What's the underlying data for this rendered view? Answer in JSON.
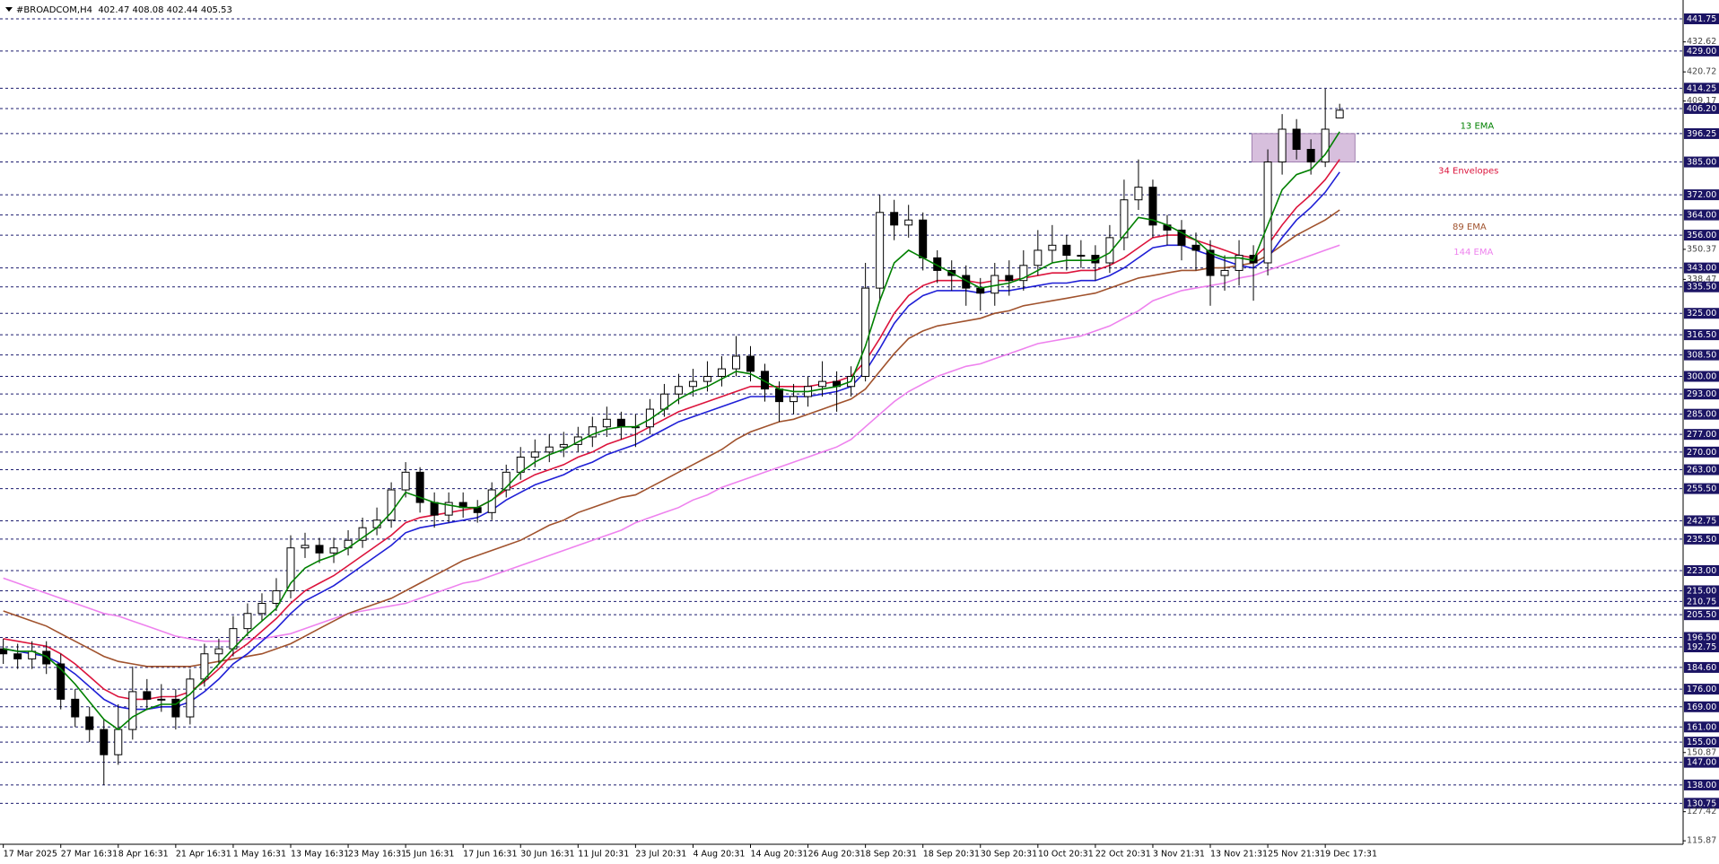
{
  "chart_data": {
    "type": "candlestick",
    "title": "#BROADCOM,H4  402.47 408.08 402.44 405.53",
    "categories": [
      "17 Mar 2025",
      null,
      null,
      null,
      "27 Mar 16:31",
      null,
      null,
      null,
      "8 Apr 16:31",
      null,
      null,
      null,
      "21 Apr 16:31",
      null,
      null,
      null,
      "1 May 16:31",
      null,
      null,
      null,
      "13 May 16:31",
      null,
      null,
      null,
      "23 May 16:31",
      null,
      null,
      null,
      "5 Jun 16:31",
      null,
      null,
      null,
      "17 Jun 16:31",
      null,
      null,
      null,
      "30 Jun 16:31",
      null,
      null,
      null,
      "11 Jul 20:31",
      null,
      null,
      null,
      "23 Jul 20:31",
      null,
      null,
      null,
      "4 Aug 20:31",
      null,
      null,
      null,
      "14 Aug 20:31",
      null,
      null,
      null,
      "26 Aug 20:31",
      null,
      null,
      null,
      "8 Sep 20:31",
      null,
      null,
      null,
      "18 Sep 20:31",
      null,
      null,
      null,
      "30 Sep 20:31",
      null,
      null,
      null,
      "10 Oct 20:31",
      null,
      null,
      null,
      "22 Oct 20:31",
      null,
      null,
      null,
      "3 Nov 21:31",
      null,
      null,
      null,
      "13 Nov 21:31",
      null,
      null,
      null,
      "25 Nov 21:31",
      null,
      null,
      null,
      "9 Dec 17:31",
      null
    ],
    "open": [
      192,
      190,
      188,
      191,
      186,
      172,
      165,
      160,
      150,
      160,
      175,
      172,
      172,
      165,
      180,
      190,
      192,
      200,
      206,
      210,
      215,
      232,
      233,
      230,
      232,
      235,
      240,
      243,
      255,
      262,
      250,
      245,
      250,
      248,
      246,
      255,
      262,
      268,
      270,
      272,
      273,
      276,
      280,
      283,
      280,
      280,
      287,
      293,
      296,
      298,
      300,
      303,
      308,
      302,
      295,
      290,
      292,
      296,
      298,
      296,
      300,
      335,
      365,
      360,
      362,
      347,
      342,
      340,
      335,
      333,
      340,
      338,
      344,
      350,
      352,
      348,
      348,
      345,
      355,
      370,
      375,
      360,
      358,
      352,
      350,
      340,
      342,
      348,
      345,
      385,
      398,
      390,
      385,
      402.47
    ],
    "high": [
      196,
      194,
      195,
      195,
      190,
      176,
      169,
      164,
      170,
      185,
      180,
      178,
      176,
      184,
      194,
      196,
      205,
      210,
      214,
      220,
      237,
      238,
      236,
      236,
      239,
      244,
      248,
      258,
      266,
      264,
      254,
      254,
      254,
      251,
      258,
      265,
      272,
      275,
      277,
      278,
      280,
      284,
      288,
      286,
      285,
      291,
      297,
      301,
      303,
      306,
      308,
      316,
      312,
      305,
      298,
      297,
      300,
      306,
      302,
      304,
      345,
      372,
      370,
      368,
      365,
      350,
      346,
      344,
      339,
      345,
      346,
      350,
      358,
      360,
      356,
      354,
      352,
      360,
      378,
      386,
      378,
      364,
      362,
      357,
      354,
      348,
      354,
      352,
      390,
      404,
      402,
      394,
      414,
      408.08
    ],
    "low": [
      186,
      184,
      184,
      182,
      168,
      161,
      155,
      138,
      146,
      156,
      168,
      167,
      160,
      162,
      177,
      186,
      189,
      197,
      203,
      207,
      212,
      228,
      226,
      226,
      229,
      232,
      237,
      240,
      252,
      246,
      240,
      242,
      244,
      242,
      243,
      252,
      259,
      264,
      266,
      268,
      270,
      272,
      276,
      275,
      272,
      277,
      284,
      289,
      292,
      294,
      296,
      300,
      298,
      290,
      282,
      285,
      288,
      292,
      286,
      292,
      298,
      330,
      354,
      355,
      342,
      337,
      334,
      328,
      326,
      328,
      332,
      334,
      340,
      345,
      342,
      343,
      338,
      341,
      350,
      366,
      355,
      352,
      346,
      342,
      328,
      334,
      336,
      330,
      340,
      380,
      386,
      380,
      383,
      402.44
    ],
    "close": [
      190,
      188,
      191,
      186,
      172,
      165,
      160,
      150,
      160,
      175,
      172,
      172,
      165,
      180,
      190,
      192,
      200,
      206,
      210,
      215,
      232,
      233,
      230,
      232,
      235,
      240,
      243,
      255,
      262,
      250,
      245,
      250,
      248,
      246,
      255,
      262,
      268,
      270,
      272,
      273,
      276,
      280,
      283,
      280,
      280,
      287,
      293,
      296,
      298,
      300,
      303,
      308,
      302,
      295,
      290,
      292,
      296,
      298,
      296,
      300,
      335,
      365,
      360,
      362,
      347,
      342,
      340,
      335,
      333,
      340,
      338,
      344,
      350,
      352,
      348,
      348,
      345,
      355,
      370,
      375,
      360,
      358,
      352,
      350,
      340,
      342,
      348,
      345,
      385,
      398,
      390,
      385,
      398,
      405.53
    ],
    "series": [
      {
        "name": "13 EMA",
        "color": "#008000",
        "values": [
          192,
          191,
          191,
          189,
          184,
          178,
          171,
          164,
          160,
          165,
          168,
          170,
          170,
          174,
          180,
          186,
          192,
          198,
          203,
          208,
          218,
          224,
          227,
          229,
          232,
          236,
          240,
          246,
          254,
          252,
          250,
          249,
          248,
          248,
          251,
          256,
          262,
          266,
          269,
          271,
          274,
          277,
          279,
          280,
          280,
          283,
          287,
          291,
          294,
          296,
          299,
          302,
          301,
          298,
          295,
          294,
          294,
          295,
          296,
          298,
          312,
          330,
          345,
          350,
          347,
          344,
          341,
          338,
          335,
          336,
          337,
          339,
          342,
          345,
          346,
          346,
          346,
          349,
          356,
          363,
          362,
          360,
          357,
          354,
          349,
          347,
          347,
          346,
          360,
          374,
          380,
          382,
          388,
          397
        ]
      },
      {
        "name": "89 EMA",
        "color": "#a0522d",
        "values": [
          207,
          205,
          203,
          201,
          198,
          195,
          192,
          189,
          187,
          186,
          185,
          185,
          185,
          185,
          186,
          187,
          188,
          189,
          190,
          192,
          194,
          197,
          200,
          203,
          206,
          208,
          210,
          212,
          215,
          218,
          221,
          224,
          227,
          229,
          231,
          233,
          235,
          238,
          241,
          243,
          246,
          248,
          250,
          252,
          253,
          256,
          259,
          262,
          265,
          268,
          271,
          275,
          278,
          280,
          282,
          283,
          285,
          287,
          289,
          291,
          295,
          302,
          309,
          315,
          318,
          320,
          321,
          322,
          323,
          325,
          326,
          328,
          329,
          330,
          331,
          332,
          333,
          335,
          337,
          339,
          340,
          341,
          342,
          342,
          343,
          343,
          344,
          345,
          348,
          352,
          356,
          359,
          362,
          366
        ]
      },
      {
        "name": "144 EMA",
        "color": "#ee82ee",
        "values": [
          220,
          218,
          216,
          214,
          212,
          210,
          208,
          206,
          205,
          203,
          201,
          199,
          197,
          196,
          195,
          195,
          195,
          196,
          196,
          197,
          198,
          200,
          202,
          204,
          206,
          207,
          208,
          209,
          210,
          212,
          214,
          216,
          218,
          219,
          221,
          223,
          225,
          227,
          229,
          231,
          233,
          235,
          237,
          239,
          242,
          244,
          246,
          248,
          251,
          253,
          256,
          258,
          260,
          262,
          264,
          266,
          268,
          270,
          272,
          275,
          280,
          285,
          290,
          294,
          297,
          300,
          302,
          304,
          305,
          307,
          309,
          311,
          313,
          314,
          315,
          316,
          318,
          320,
          323,
          326,
          330,
          332,
          334,
          335,
          336,
          337,
          339,
          340,
          342,
          344,
          346,
          348,
          350,
          352
        ]
      }
    ],
    "envelope": {
      "name": "34 Envelopes",
      "upper_color": "#dc143c",
      "lower_color": "#1f1fd6",
      "upper": [
        196,
        195,
        194,
        193,
        190,
        186,
        181,
        176,
        173,
        172,
        172,
        173,
        173,
        175,
        179,
        184,
        190,
        194,
        199,
        204,
        210,
        215,
        218,
        221,
        225,
        229,
        233,
        237,
        242,
        244,
        245,
        246,
        247,
        248,
        251,
        255,
        258,
        261,
        263,
        265,
        268,
        270,
        273,
        275,
        277,
        280,
        283,
        286,
        288,
        290,
        292,
        294,
        296,
        296,
        296,
        296,
        296,
        297,
        298,
        300,
        306,
        315,
        325,
        332,
        336,
        338,
        338,
        338,
        337,
        338,
        338,
        339,
        340,
        341,
        341,
        342,
        342,
        344,
        347,
        351,
        355,
        356,
        356,
        354,
        352,
        350,
        348,
        347,
        352,
        360,
        367,
        372,
        378,
        386
      ],
      "lower": [
        192,
        191,
        190,
        189,
        186,
        182,
        177,
        172,
        169,
        168,
        168,
        169,
        169,
        171,
        175,
        180,
        186,
        190,
        195,
        200,
        206,
        211,
        214,
        217,
        221,
        225,
        229,
        233,
        238,
        240,
        241,
        242,
        243,
        244,
        247,
        251,
        254,
        257,
        259,
        261,
        264,
        266,
        269,
        271,
        273,
        276,
        279,
        282,
        284,
        286,
        288,
        290,
        292,
        292,
        292,
        292,
        292,
        293,
        294,
        296,
        302,
        311,
        321,
        328,
        332,
        334,
        334,
        334,
        333,
        334,
        334,
        335,
        336,
        337,
        337,
        338,
        338,
        340,
        343,
        347,
        351,
        352,
        352,
        350,
        348,
        346,
        344,
        343,
        347,
        355,
        362,
        367,
        373,
        381
      ]
    },
    "zone": {
      "from": 385,
      "to": 396.25,
      "color": "#c9a9d1"
    },
    "ylim": [
      114.5,
      447.8
    ],
    "yticks": [
      432.62,
      420.72,
      409.17,
      350.37,
      338.47,
      150.87,
      127.42,
      115.87
    ],
    "levels": [
      441.75,
      {
        "value": 429,
        "label": "429.00"
      },
      414.25,
      {
        "value": 406.2,
        "label": "406.20"
      },
      396.25,
      {
        "value": 385,
        "label": "385.00"
      },
      {
        "value": 372,
        "label": "372.00"
      },
      {
        "value": 364,
        "label": "364.00"
      },
      {
        "value": 356,
        "label": "356.00"
      },
      {
        "value": 343,
        "label": "343.00"
      },
      {
        "value": 335.5,
        "label": "335.50"
      },
      {
        "value": 325,
        "label": "325.00"
      },
      {
        "value": 316.5,
        "label": "316.50"
      },
      {
        "value": 308.5,
        "label": "308.50"
      },
      {
        "value": 300,
        "label": "300.00"
      },
      {
        "value": 293,
        "label": "293.00"
      },
      {
        "value": 285,
        "label": "285.00"
      },
      {
        "value": 277,
        "label": "277.00"
      },
      {
        "value": 270,
        "label": "270.00"
      },
      {
        "value": 263,
        "label": "263.00"
      },
      {
        "value": 255.5,
        "label": "255.50"
      },
      242.75,
      {
        "value": 235.5,
        "label": "235.50"
      },
      {
        "value": 223,
        "label": "223.00"
      },
      {
        "value": 215,
        "label": "215.00"
      },
      210.75,
      {
        "value": 205.5,
        "label": "205.50"
      },
      {
        "value": 196.5,
        "label": "196.50"
      },
      192.75,
      {
        "value": 184.6,
        "label": "184.60"
      },
      {
        "value": 176,
        "label": "176.00"
      },
      {
        "value": 169,
        "label": "169.00"
      },
      {
        "value": 161,
        "label": "161.00"
      },
      {
        "value": 155,
        "label": "155.00"
      },
      {
        "value": 147,
        "label": "147.00"
      },
      {
        "value": 138,
        "label": "138.00"
      },
      130.75
    ],
    "level_color": "#1b1464"
  }
}
